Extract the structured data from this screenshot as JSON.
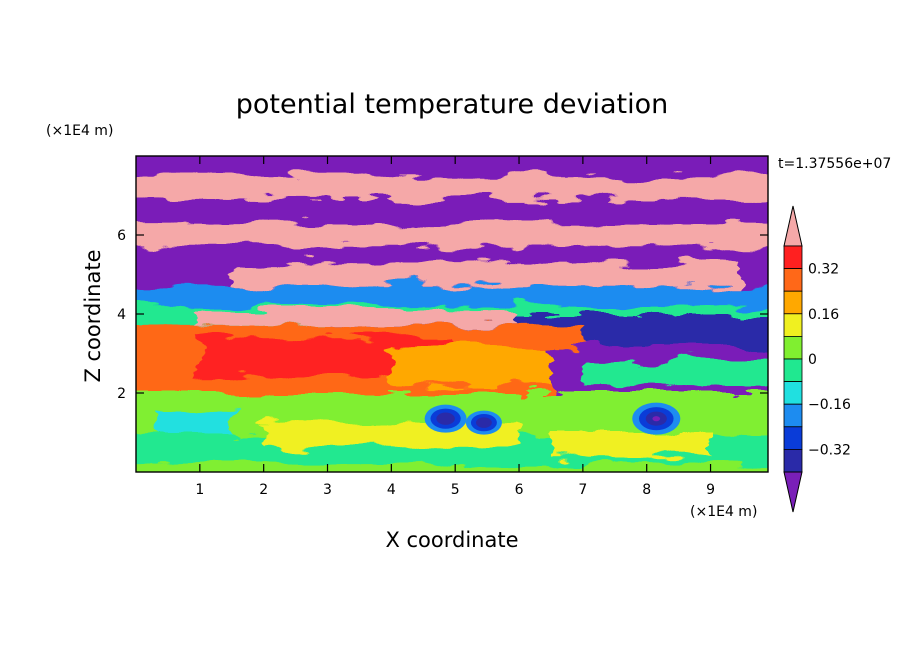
{
  "chart_data": {
    "type": "heatmap",
    "title": "potential temperature deviation",
    "xlabel": "X coordinate",
    "ylabel": "Z coordinate",
    "x_unit": "(×1E4 m)",
    "y_unit": "(×1E4 m)",
    "time_label": "t=1.37556e+07",
    "xlim": [
      0,
      9.9
    ],
    "ylim": [
      0,
      8.0
    ],
    "x_ticks": [
      "1",
      "2",
      "3",
      "4",
      "5",
      "6",
      "7",
      "8",
      "9"
    ],
    "y_ticks": [
      "2",
      "4",
      "6"
    ],
    "colorbar": {
      "labels": [
        "0.32",
        "0.16",
        "0",
        "−0.16",
        "−0.32"
      ],
      "label_values": [
        0.32,
        0.16,
        0.0,
        -0.16,
        -0.32
      ],
      "levels": [
        -0.4,
        -0.32,
        -0.24,
        -0.16,
        -0.08,
        0.0,
        0.08,
        0.16,
        0.24,
        0.32,
        0.4
      ],
      "colors": [
        "#7a1fb8",
        "#2a2aa8",
        "#0a3cd8",
        "#1d8cf0",
        "#20e0e0",
        "#20e890",
        "#80ef30",
        "#f0f020",
        "#ffa800",
        "#ff6818",
        "#ff2020",
        "#f5a8a8"
      ]
    },
    "layers": [
      {
        "z_range": [
          0,
          2.0
        ],
        "description_value": "mostly near 0 to +0.16 with negative eddies near x=4.8, 5.3, 8.1",
        "dominant_value": 0.05
      },
      {
        "z_range": [
          2.0,
          3.8
        ],
        "dominant_value": 0.28
      },
      {
        "z_range": [
          3.8,
          4.8
        ],
        "dominant_value": -0.1
      },
      {
        "z_range": [
          4.8,
          8.0
        ],
        "dominant_value": 0.42,
        "alternating_with": -0.42
      }
    ]
  }
}
